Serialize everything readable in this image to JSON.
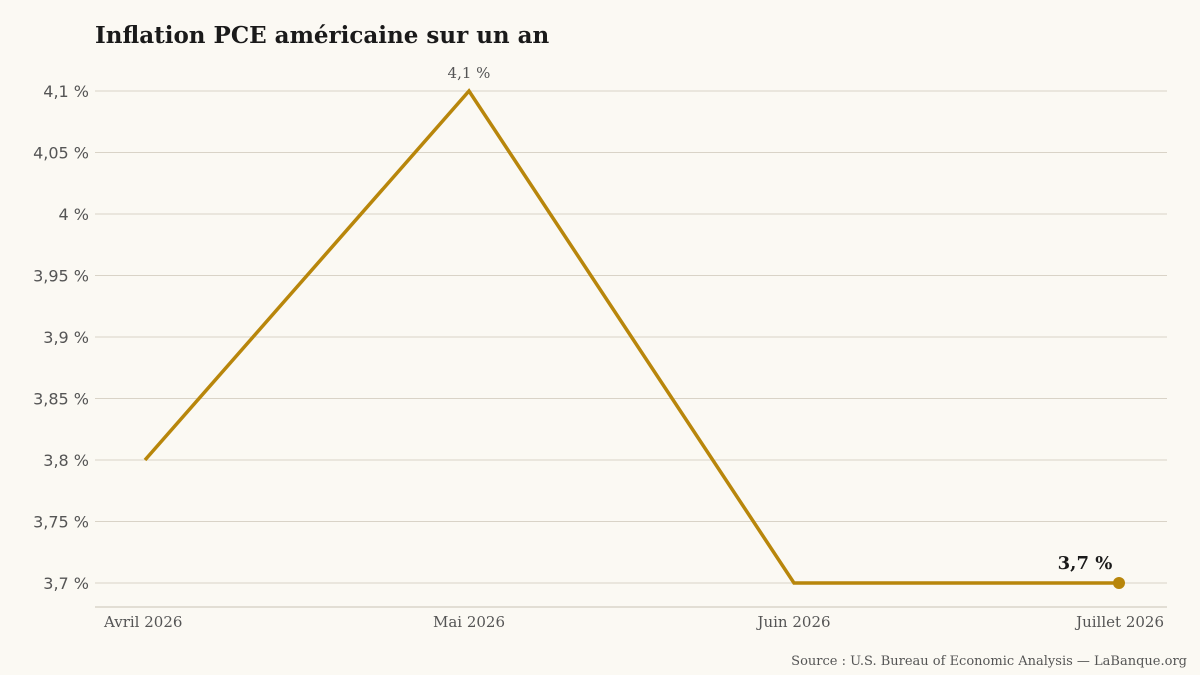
{
  "chart_data": {
    "type": "line",
    "title": "Inflation PCE américaine sur un an",
    "categories": [
      "Avril 2026",
      "Mai 2026",
      "Juin 2026",
      "Juillet 2026"
    ],
    "values": [
      3.8,
      4.1,
      3.7,
      3.7
    ],
    "ylim": [
      3.7,
      4.1
    ],
    "yticks": [
      3.7,
      3.75,
      3.8,
      3.85,
      3.9,
      3.95,
      4.0,
      4.05,
      4.1
    ],
    "ytick_labels": [
      "3,7 %",
      "3,75 %",
      "3,8 %",
      "3,85 %",
      "3,9 %",
      "3,95 %",
      "4 %",
      "4,05 %",
      "4,1 %"
    ],
    "grid": true,
    "annotations": {
      "peak": {
        "category": "Mai 2026",
        "label": "4,1 %"
      },
      "last": {
        "category": "Juillet 2026",
        "label": "3,7 %"
      }
    },
    "source": "Source : U.S. Bureau of Economic Analysis — LaBanque.org",
    "colors": {
      "line": "#b8860b",
      "background": "#fbf9f3",
      "grid": "#d9d3c7"
    }
  }
}
